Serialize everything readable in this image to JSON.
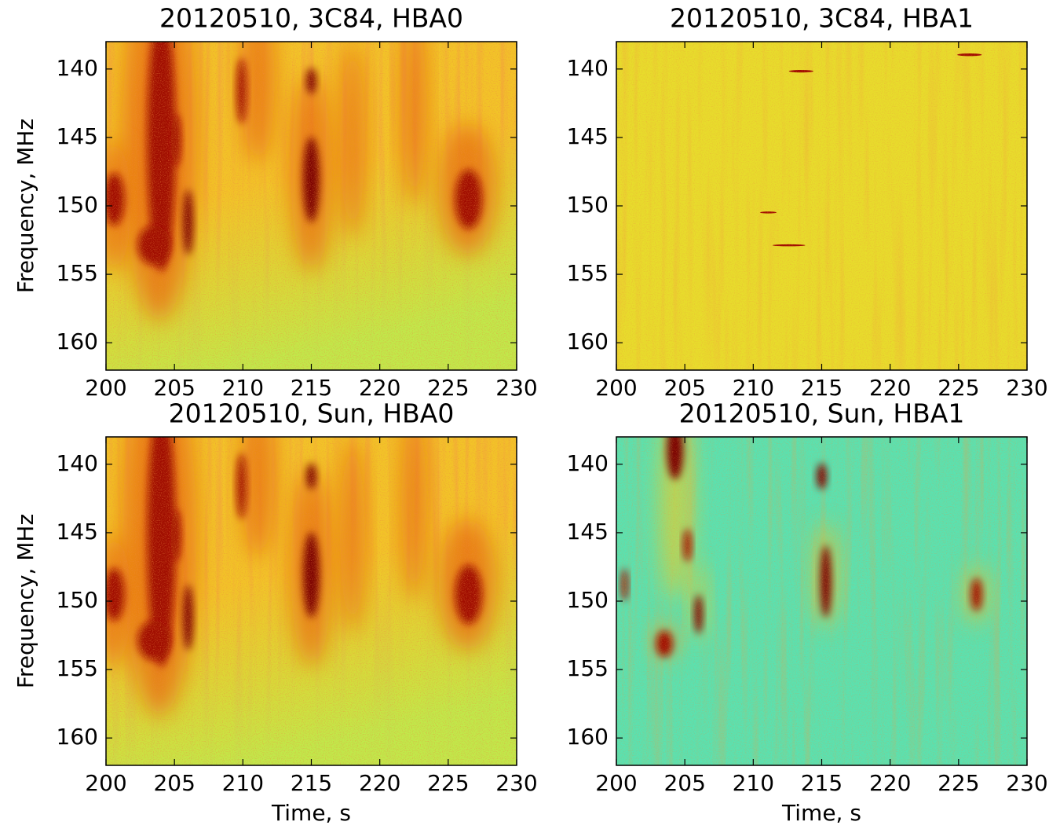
{
  "chart_data": [
    {
      "type": "heatmap",
      "title": "20120510, 3C84, HBA0",
      "y_label": "Frequency, MHz",
      "base_color": "#f2c428",
      "xlim": [
        200,
        230
      ],
      "xticks": [
        200,
        205,
        210,
        215,
        220,
        225,
        230
      ],
      "ylim": [
        138,
        162
      ],
      "yticks": [
        140,
        145,
        150,
        155,
        160
      ],
      "y_inverted": true
    },
    {
      "type": "heatmap",
      "title": "20120510, 3C84, HBA1",
      "base_color": "#e8dc2c",
      "xlim": [
        200,
        230
      ],
      "xticks": [
        200,
        205,
        210,
        215,
        220,
        225,
        230
      ],
      "ylim": [
        138,
        162
      ],
      "yticks": [
        140,
        145,
        150,
        155,
        160
      ],
      "y_inverted": true
    },
    {
      "type": "heatmap",
      "title": "20120510, Sun, HBA0",
      "x_label": "Time, s",
      "y_label": "Frequency, MHz",
      "base_color": "#f2c428",
      "xlim": [
        200,
        230
      ],
      "xticks": [
        200,
        205,
        210,
        215,
        220,
        225,
        230
      ],
      "ylim": [
        138,
        162
      ],
      "yticks": [
        140,
        145,
        150,
        155,
        160
      ],
      "y_inverted": true
    },
    {
      "type": "heatmap",
      "title": "20120510, Sun, HBA1",
      "x_label": "Time, s",
      "base_color": "#5ae2b0",
      "xlim": [
        200,
        230
      ],
      "xticks": [
        200,
        205,
        210,
        215,
        220,
        225,
        230
      ],
      "ylim": [
        138,
        162
      ],
      "yticks": [
        140,
        145,
        150,
        155,
        160
      ],
      "y_inverted": true
    }
  ]
}
